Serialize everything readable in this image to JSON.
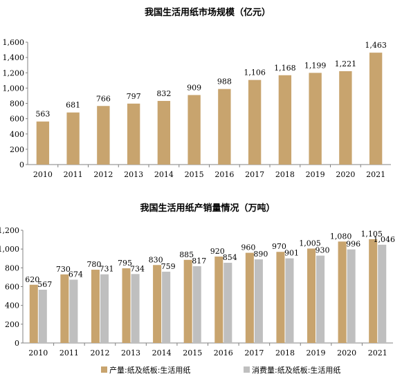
{
  "chart_data": [
    {
      "type": "bar",
      "title": "我国生活用纸市场规模（亿元）",
      "categories": [
        "2010",
        "2011",
        "2012",
        "2013",
        "2014",
        "2015",
        "2016",
        "2017",
        "2018",
        "2019",
        "2020",
        "2021"
      ],
      "values": [
        563,
        681,
        766,
        797,
        832,
        909,
        988,
        1106,
        1168,
        1199,
        1221,
        1463
      ],
      "value_labels": [
        "563",
        "681",
        "766",
        "797",
        "832",
        "909",
        "988",
        "1,106",
        "1,168",
        "1,199",
        "1,221",
        "1,463"
      ],
      "ylim": [
        0,
        1600
      ],
      "yticks": [
        "0",
        "200",
        "400",
        "600",
        "800",
        "1,000",
        "1,200",
        "1,400",
        "1,600"
      ],
      "color": "#C8A46E",
      "grid": false
    },
    {
      "type": "bar",
      "title": "我国生活用纸产销量情况（万吨）",
      "categories": [
        "2010",
        "2011",
        "2012",
        "2013",
        "2014",
        "2015",
        "2016",
        "2017",
        "2018",
        "2019",
        "2020",
        "2021"
      ],
      "series": [
        {
          "name": "产量:纸及纸板:生活用纸",
          "values": [
            620,
            730,
            780,
            795,
            830,
            885,
            920,
            960,
            970,
            1005,
            1080,
            1105
          ],
          "labels": [
            "620",
            "730",
            "780",
            "795",
            "830",
            "885",
            "920",
            "960",
            "970",
            "1,005",
            "1,080",
            "1,105"
          ],
          "color": "#C8A46E"
        },
        {
          "name": "消费量:纸及纸板:生活用纸",
          "values": [
            567,
            674,
            731,
            734,
            759,
            817,
            854,
            890,
            901,
            930,
            996,
            1046
          ],
          "labels": [
            "567",
            "674",
            "731",
            "734",
            "759",
            "817",
            "854",
            "890",
            "901",
            "930",
            "996",
            "1,046"
          ],
          "color": "#BFBFBF"
        }
      ],
      "ylim": [
        0,
        1200
      ],
      "yticks": [
        "0",
        "200",
        "400",
        "600",
        "800",
        "1,000",
        "1,200"
      ],
      "legend": "bottom",
      "grid": false
    }
  ]
}
